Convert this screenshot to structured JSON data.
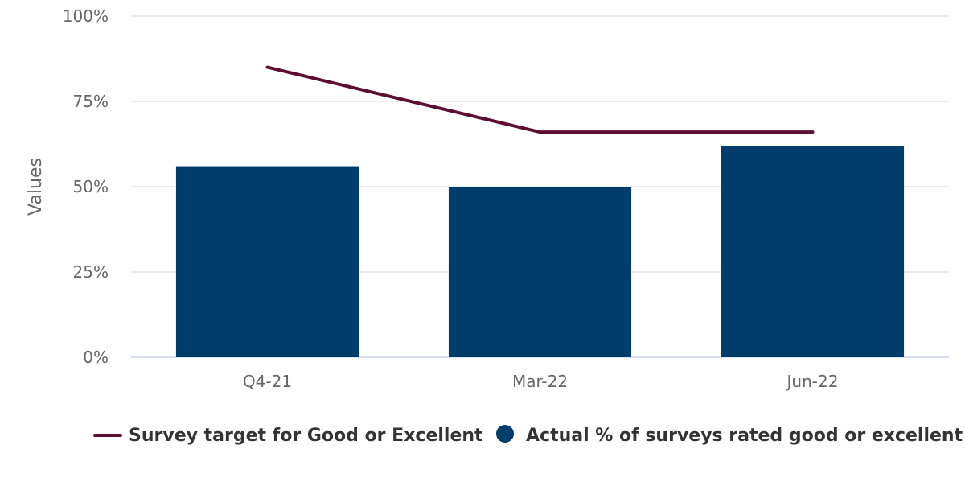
{
  "chart_data": {
    "type": "bar",
    "categories": [
      "Q4-21",
      "Mar-22",
      "Jun-22"
    ],
    "series": [
      {
        "name": "Survey target for Good or Excellent",
        "kind": "line",
        "values": [
          85,
          66,
          66
        ],
        "color": "#5c0f33"
      },
      {
        "name": "Actual % of surveys rated good or excellent",
        "kind": "bar",
        "values": [
          56,
          50,
          62
        ],
        "color": "#003d6b"
      }
    ],
    "title": "",
    "xlabel": "",
    "ylabel": "Values",
    "ylim": [
      0,
      100
    ],
    "yticks": [
      "0%",
      "25%",
      "50%",
      "75%",
      "100%"
    ],
    "grid": true,
    "legend_position": "bottom"
  }
}
